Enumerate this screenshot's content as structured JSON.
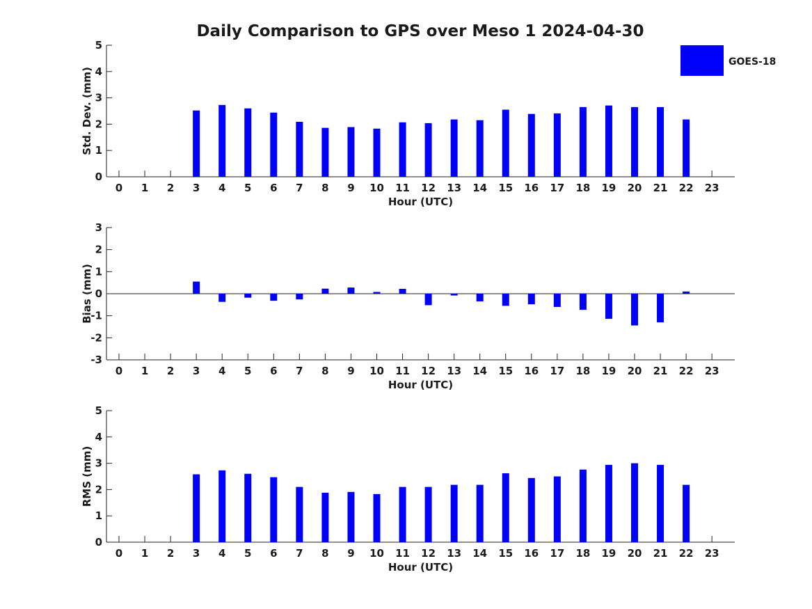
{
  "chart_data": {
    "type": "bar",
    "title": "Daily Comparison to GPS over Meso 1 2024-04-30",
    "legend": {
      "entries": [
        "GOES-18"
      ],
      "placement": "top-right",
      "color": "#0000ff"
    },
    "categories": [
      "0",
      "1",
      "2",
      "3",
      "4",
      "5",
      "6",
      "7",
      "8",
      "9",
      "10",
      "11",
      "12",
      "13",
      "14",
      "15",
      "16",
      "17",
      "18",
      "19",
      "20",
      "21",
      "22",
      "23"
    ],
    "panels": [
      {
        "id": "std",
        "ylabel": "Std. Dev. (mm)",
        "xlabel": "Hour (UTC)",
        "ylim": [
          0,
          5
        ],
        "yticks": [
          0,
          1,
          2,
          3,
          4,
          5
        ],
        "series": [
          {
            "name": "GOES-18",
            "color": "#0000ff",
            "values": [
              null,
              null,
              null,
              2.52,
              2.73,
              2.6,
              2.44,
              2.09,
              1.86,
              1.89,
              1.83,
              2.07,
              2.04,
              2.18,
              2.15,
              2.55,
              2.39,
              2.41,
              2.65,
              2.71,
              2.65,
              2.65,
              2.18,
              null
            ]
          }
        ]
      },
      {
        "id": "bias",
        "ylabel": "Bias (mm)",
        "xlabel": "Hour (UTC)",
        "ylim": [
          -3,
          3
        ],
        "yticks": [
          -3,
          -2,
          -1,
          0,
          1,
          2,
          3
        ],
        "zero_line": true,
        "series": [
          {
            "name": "GOES-18",
            "color": "#0000ff",
            "values": [
              null,
              null,
              null,
              0.55,
              -0.37,
              -0.18,
              -0.32,
              -0.26,
              0.23,
              0.28,
              0.08,
              0.22,
              -0.52,
              -0.08,
              -0.35,
              -0.55,
              -0.48,
              -0.6,
              -0.73,
              -1.14,
              -1.44,
              -1.3,
              0.1,
              null
            ]
          }
        ]
      },
      {
        "id": "rms",
        "ylabel": "RMS (mm)",
        "xlabel": "Hour (UTC)",
        "ylim": [
          0,
          5
        ],
        "yticks": [
          0,
          1,
          2,
          3,
          4,
          5
        ],
        "series": [
          {
            "name": "GOES-18",
            "color": "#0000ff",
            "values": [
              null,
              null,
              null,
              2.58,
              2.73,
              2.6,
              2.47,
              2.1,
              1.88,
              1.91,
              1.83,
              2.1,
              2.1,
              2.18,
              2.18,
              2.62,
              2.44,
              2.5,
              2.76,
              2.94,
              3.0,
              2.94,
              2.18,
              null
            ]
          }
        ]
      }
    ]
  }
}
